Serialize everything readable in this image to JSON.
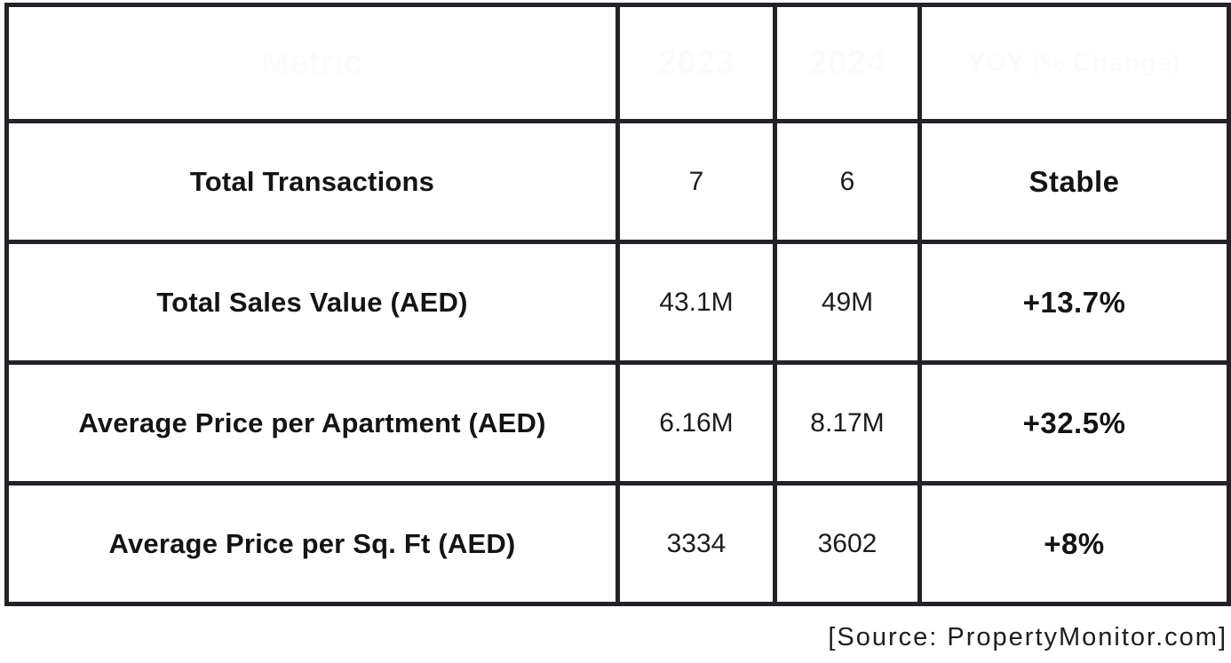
{
  "chart_data": {
    "type": "table",
    "columns": [
      "Metric",
      "2023",
      "2024",
      "YOY (% Change)"
    ],
    "rows": [
      [
        "Total Transactions",
        "7",
        "6",
        "Stable"
      ],
      [
        "Total Sales Value (AED)",
        "43.1M",
        "49M",
        "+13.7%"
      ],
      [
        "Average Price per Apartment (AED)",
        "6.16M",
        "8.17M",
        "+32.5%"
      ],
      [
        "Average Price per Sq. Ft (AED)",
        "3334",
        "3602",
        "+8%"
      ]
    ],
    "source": "[Source: PropertyMonitor.com]"
  },
  "colors": {
    "header_bg": "#030303",
    "header_text": "#fbfbfb",
    "border": "#232227",
    "body_bg": "#ffffff",
    "body_text": "#141414"
  }
}
